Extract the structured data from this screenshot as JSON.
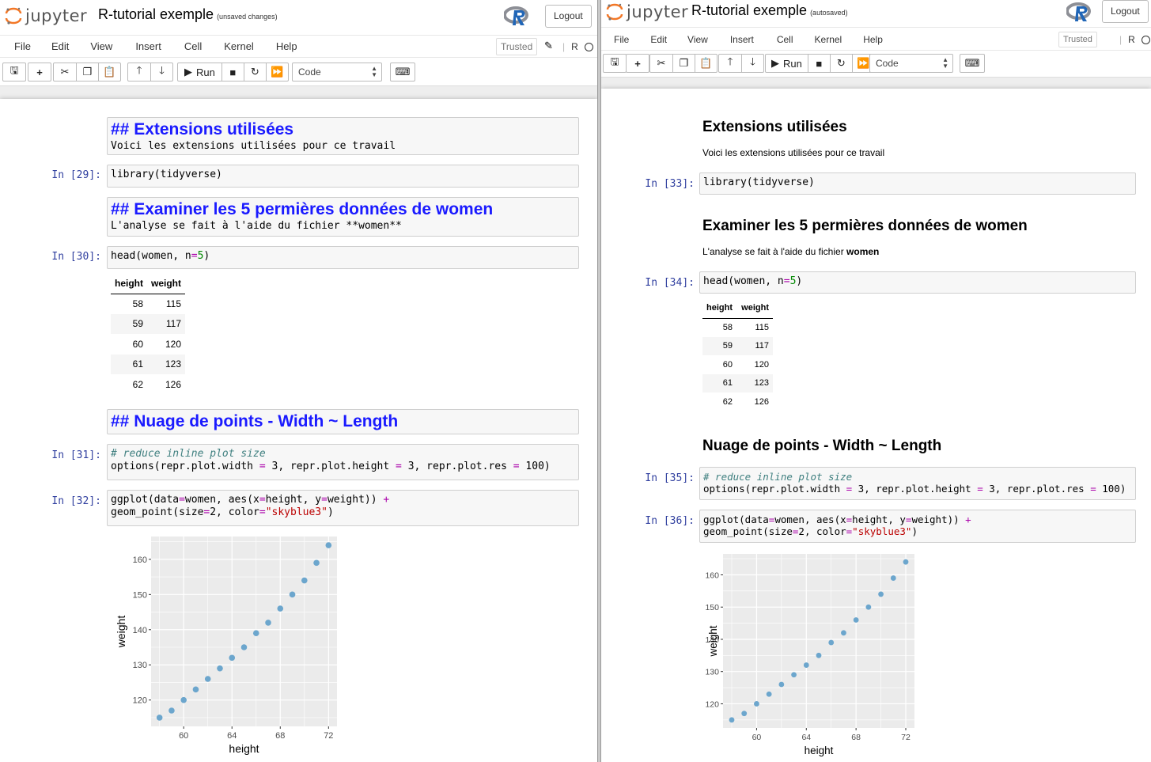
{
  "app": {
    "name": "jupyter",
    "logout": "Logout",
    "kernel_letter": "R"
  },
  "menu": [
    "File",
    "Edit",
    "View",
    "Insert",
    "Cell",
    "Kernel",
    "Help"
  ],
  "toolbar": {
    "run_label": "Run",
    "cell_type": "Code",
    "trusted": "Trusted"
  },
  "left": {
    "title": "R-tutorial exemple",
    "status": "(unsaved changes)",
    "md1": {
      "heading": "## Extensions utilisées",
      "body": "Voici les extensions utilisées pour ce travail"
    },
    "c29": {
      "prompt": "In [29]:",
      "code": "library(tidyverse)"
    },
    "md2": {
      "heading": "## Examiner les 5 permières données de women",
      "body": "L'analyse se fait à l'aide du fichier **women**"
    },
    "c30": {
      "prompt": "In [30]:",
      "code_a": "head(women, n",
      "code_eq": "=",
      "code_num": "5",
      "code_b": ")"
    },
    "md3": {
      "heading": "## Nuage de points - Width ~ Length"
    },
    "c31": {
      "prompt": "In [31]:",
      "comment": "# reduce inline plot size",
      "l2a": "options(repr.plot.width ",
      "l2b": " 3, repr.plot.height ",
      "l2c": " 3, repr.plot.res ",
      "l2d": " 100)"
    },
    "c32": {
      "prompt": "In [32]:",
      "l1a": "ggplot(data",
      "l1b": "women, aes(x",
      "l1c": "height, y",
      "l1d": "weight)) ",
      "plus": "+",
      "l2a": "geom_point(size",
      "l2b": "2, color",
      "l2str": "\"skyblue3\"",
      "l2c": ")"
    }
  },
  "right": {
    "title": "R-tutorial exemple",
    "status": "(autosaved)",
    "md1": {
      "heading": "Extensions utilisées",
      "body": "Voici les extensions utilisées pour ce travail"
    },
    "c33": {
      "prompt": "In [33]:",
      "code": "library(tidyverse)"
    },
    "md2": {
      "heading": "Examiner les 5 permières données de women",
      "body_a": "L'analyse se fait à l'aide du fichier ",
      "body_b": "women"
    },
    "c34": {
      "prompt": "In [34]:"
    },
    "md3": {
      "heading": "Nuage de points - Width ~ Length"
    },
    "c35": {
      "prompt": "In [35]:"
    },
    "c36": {
      "prompt": "In [36]:"
    }
  },
  "table": {
    "columns": [
      "height",
      "weight"
    ],
    "rows": [
      [
        "58",
        "115"
      ],
      [
        "59",
        "117"
      ],
      [
        "60",
        "120"
      ],
      [
        "61",
        "123"
      ],
      [
        "62",
        "126"
      ]
    ]
  },
  "chart_data": {
    "type": "scatter",
    "xlabel": "height",
    "ylabel": "weight",
    "x": [
      58,
      59,
      60,
      61,
      62,
      63,
      64,
      65,
      66,
      67,
      68,
      69,
      70,
      71,
      72
    ],
    "y": [
      115,
      117,
      120,
      123,
      126,
      129,
      132,
      135,
      139,
      142,
      146,
      150,
      154,
      159,
      164
    ],
    "xlim": [
      57.3,
      72.7
    ],
    "ylim": [
      112.5,
      166.5
    ],
    "xticks": [
      60,
      64,
      68,
      72
    ],
    "yticks": [
      120,
      130,
      140,
      150,
      160
    ],
    "point_color": "#6CA6CD",
    "panel_color": "#EBEBEB",
    "grid": true
  }
}
